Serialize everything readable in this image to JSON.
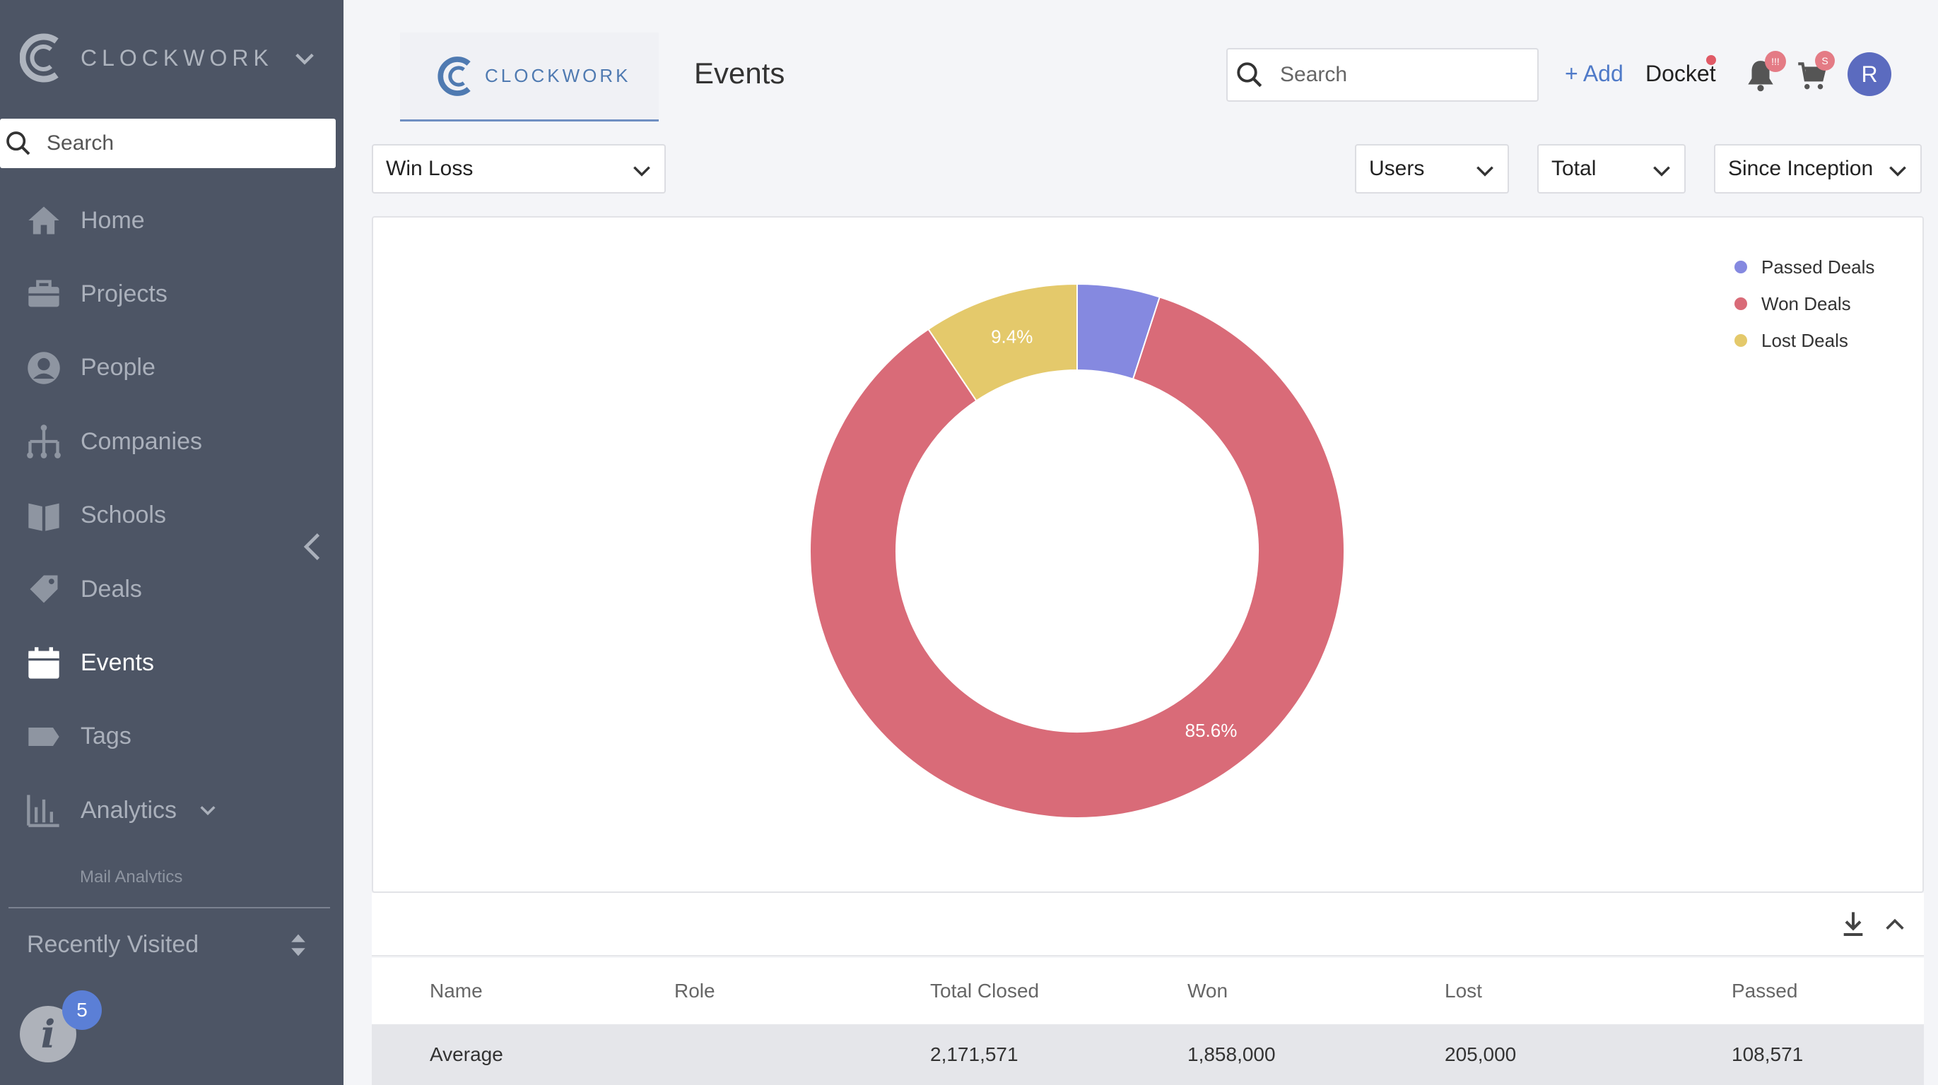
{
  "sidebar": {
    "brand": "CLOCKWORK",
    "search_placeholder": "Search",
    "items": [
      {
        "label": "Home",
        "icon": "home-icon"
      },
      {
        "label": "Projects",
        "icon": "briefcase-icon"
      },
      {
        "label": "People",
        "icon": "person-icon"
      },
      {
        "label": "Companies",
        "icon": "org-chart-icon"
      },
      {
        "label": "Schools",
        "icon": "book-icon"
      },
      {
        "label": "Deals",
        "icon": "tag-icon"
      },
      {
        "label": "Events",
        "icon": "calendar-icon"
      },
      {
        "label": "Tags",
        "icon": "label-icon"
      },
      {
        "label": "Analytics",
        "icon": "bar-chart-icon"
      }
    ],
    "sub_item": "Mail Analytics",
    "recently_visited": "Recently Visited",
    "info_badge": "5"
  },
  "header": {
    "logo_text": "CLOCKWORK",
    "page_title": "Events",
    "search_placeholder": "Search",
    "add_label": "+ Add",
    "docket_label": "Docket",
    "bell_badge": "!!!",
    "cart_badge": "S",
    "avatar_initial": "R"
  },
  "filters": {
    "report": "Win Loss",
    "users": "Users",
    "total": "Total",
    "period": "Since Inception"
  },
  "colors": {
    "passed": "#8589e0",
    "won": "#d96b78",
    "lost": "#e4c96b",
    "sidebar_bg": "#4d5565",
    "accent": "#4f7ac8"
  },
  "chart_data": {
    "type": "pie",
    "donut": true,
    "series": [
      {
        "name": "Passed Deals",
        "value": 5.0
      },
      {
        "name": "Won Deals",
        "value": 85.6,
        "label": "85.6%"
      },
      {
        "name": "Lost Deals",
        "value": 9.4,
        "label": "9.4%"
      }
    ],
    "legend_position": "top-right"
  },
  "table": {
    "columns": [
      "Name",
      "Role",
      "Total Closed",
      "Won",
      "Lost",
      "Passed"
    ],
    "rows": [
      {
        "name": "Average",
        "role": "",
        "total_closed": "2,171,571",
        "won": "1,858,000",
        "lost": "205,000",
        "passed": "108,571"
      }
    ]
  }
}
